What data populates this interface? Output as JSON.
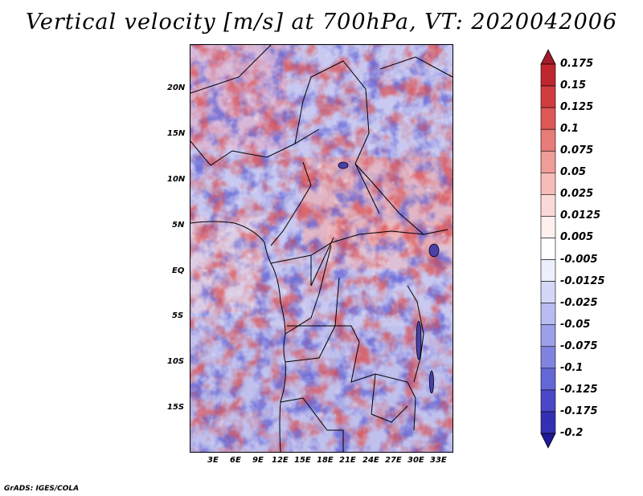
{
  "title": "Vertical velocity [m/s] at 700hPa, VT: 2020042006",
  "credit": "GrADS: IGES/COLA",
  "lat_labels": [
    "20N",
    "15N",
    "10N",
    "5N",
    "EQ",
    "5S",
    "10S",
    "15S"
  ],
  "lon_labels": [
    "3E",
    "6E",
    "9E",
    "12E",
    "15E",
    "18E",
    "21E",
    "24E",
    "27E",
    "30E",
    "33E"
  ],
  "colorbar": {
    "labels": [
      "0.175",
      "0.15",
      "0.125",
      "0.1",
      "0.075",
      "0.05",
      "0.025",
      "0.0125",
      "0.005",
      "-0.005",
      "-0.0125",
      "-0.025",
      "-0.05",
      "-0.075",
      "-0.1",
      "-0.125",
      "-0.175",
      "-0.2"
    ],
    "colors": [
      "#a01c28",
      "#c0262e",
      "#d03c40",
      "#de5858",
      "#e87c78",
      "#f09c98",
      "#f6bcba",
      "#fadad8",
      "#fdf0ee",
      "#ffffff",
      "#eceffc",
      "#d4d8f6",
      "#b8bcf0",
      "#9ca0e8",
      "#8084e0",
      "#6468d6",
      "#4a48c8",
      "#3430b4",
      "#20189a"
    ]
  },
  "map_colors": {
    "red": "#dc4848",
    "blue": "#5a5ad2",
    "border": "#000000"
  }
}
